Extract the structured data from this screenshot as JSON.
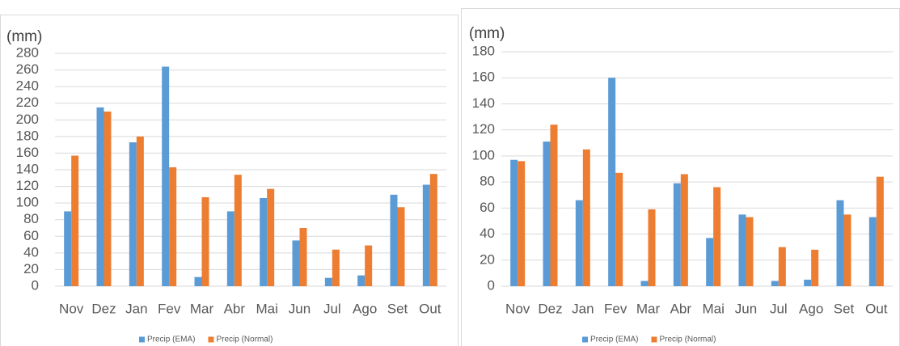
{
  "chart_data": [
    {
      "type": "bar",
      "y_label": "(mm)",
      "categories": [
        "Nov",
        "Dez",
        "Jan",
        "Fev",
        "Mar",
        "Abr",
        "Mai",
        "Jun",
        "Jul",
        "Ago",
        "Set",
        "Out"
      ],
      "series": [
        {
          "name": "Precip (EMA)",
          "color": "#5b9bd5",
          "values": [
            90,
            215,
            173,
            264,
            11,
            90,
            106,
            55,
            10,
            13,
            110,
            122
          ]
        },
        {
          "name": "Precip (Normal)",
          "color": "#ed7d31",
          "values": [
            157,
            210,
            180,
            143,
            107,
            134,
            117,
            70,
            44,
            49,
            95,
            135
          ]
        }
      ],
      "ylim": [
        0,
        280
      ],
      "yticks": [
        0,
        20,
        40,
        60,
        80,
        100,
        120,
        140,
        160,
        180,
        200,
        220,
        240,
        260,
        280
      ],
      "grid": true
    },
    {
      "type": "bar",
      "y_label": "(mm)",
      "categories": [
        "Nov",
        "Dez",
        "Jan",
        "Fev",
        "Mar",
        "Abr",
        "Mai",
        "Jun",
        "Jul",
        "Ago",
        "Set",
        "Out"
      ],
      "series": [
        {
          "name": "Precip (EMA)",
          "color": "#5b9bd5",
          "values": [
            97,
            111,
            66,
            160,
            4,
            79,
            37,
            55,
            4,
            5,
            66,
            53
          ]
        },
        {
          "name": "Precip (Normal)",
          "color": "#ed7d31",
          "values": [
            96,
            124,
            105,
            87,
            59,
            86,
            76,
            53,
            30,
            28,
            55,
            84
          ]
        }
      ],
      "ylim": [
        0,
        180
      ],
      "yticks": [
        0,
        20,
        40,
        60,
        80,
        100,
        120,
        140,
        160,
        180
      ],
      "grid": true
    }
  ]
}
